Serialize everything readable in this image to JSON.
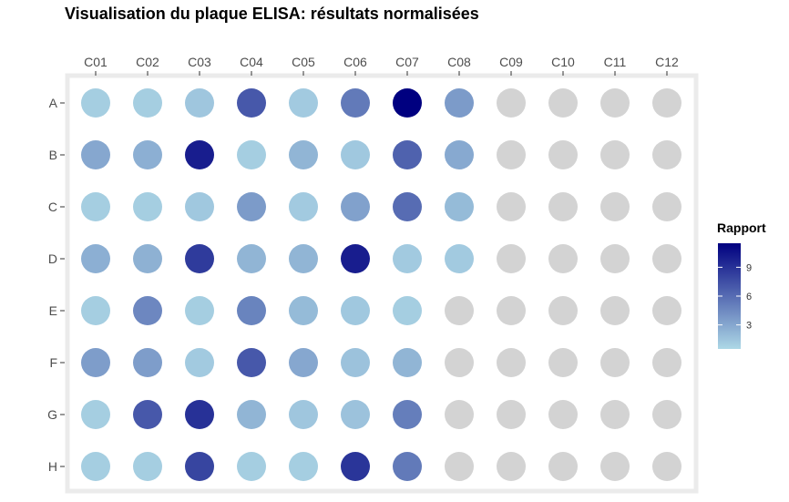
{
  "chart_data": {
    "type": "heatmap",
    "title": "Visualisation du plaque ELISA: résultats normalisées",
    "columns": [
      "C01",
      "C02",
      "C03",
      "C04",
      "C05",
      "C06",
      "C07",
      "C08",
      "C09",
      "C10",
      "C11",
      "C12"
    ],
    "rows": [
      "A",
      "B",
      "C",
      "D",
      "E",
      "F",
      "G",
      "H"
    ],
    "values": [
      [
        1.0,
        1.0,
        1.4,
        7.0,
        1.2,
        5.3,
        11.5,
        3.6,
        null,
        null,
        null,
        null
      ],
      [
        3.0,
        2.6,
        10.0,
        1.0,
        2.3,
        1.3,
        6.5,
        2.9,
        null,
        null,
        null,
        null
      ],
      [
        1.0,
        1.0,
        1.3,
        3.6,
        1.2,
        3.3,
        6.0,
        2.0,
        null,
        null,
        null,
        null
      ],
      [
        2.6,
        2.5,
        8.5,
        2.3,
        2.3,
        10.0,
        1.2,
        1.2,
        null,
        null,
        null,
        null
      ],
      [
        1.0,
        4.6,
        1.0,
        4.8,
        2.0,
        1.3,
        1.0,
        null,
        null,
        null,
        null,
        null
      ],
      [
        3.5,
        3.5,
        1.2,
        7.0,
        3.0,
        1.6,
        2.3,
        null,
        null,
        null,
        null,
        null
      ],
      [
        1.0,
        7.0,
        9.0,
        2.3,
        1.4,
        1.6,
        5.1,
        null,
        null,
        null,
        null,
        null
      ],
      [
        1.0,
        1.0,
        8.0,
        1.0,
        1.0,
        8.8,
        5.3,
        null,
        null,
        null,
        null,
        null
      ]
    ],
    "legend": {
      "title": "Rapport",
      "ticks": [
        3,
        6,
        9
      ],
      "range": [
        0.5,
        11.5
      ],
      "low_color": "#add8e6",
      "high_color": "#000080"
    },
    "missing_color": "#d3d3d3",
    "grid": false,
    "legend_position": "right"
  }
}
